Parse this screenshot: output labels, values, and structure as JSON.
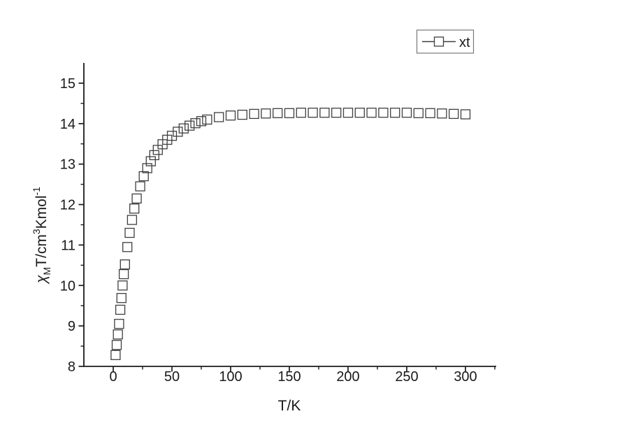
{
  "chart_data": {
    "type": "scatter",
    "title": "",
    "series": [
      {
        "name": "xt",
        "marker": "open-square",
        "x": [
          2,
          3,
          4,
          5,
          6,
          7,
          8,
          9,
          10,
          12,
          14,
          16,
          18,
          20,
          23,
          26,
          29,
          32,
          35,
          38,
          42,
          46,
          50,
          55,
          60,
          65,
          70,
          75,
          80,
          90,
          100,
          110,
          120,
          130,
          140,
          150,
          160,
          170,
          180,
          190,
          200,
          210,
          220,
          230,
          240,
          250,
          260,
          270,
          280,
          290,
          300
        ],
        "y": [
          8.28,
          8.53,
          8.79,
          9.05,
          9.4,
          9.69,
          10.0,
          10.28,
          10.52,
          10.95,
          11.3,
          11.62,
          11.9,
          12.15,
          12.45,
          12.7,
          12.9,
          13.07,
          13.22,
          13.35,
          13.49,
          13.6,
          13.7,
          13.8,
          13.88,
          13.95,
          14.01,
          14.06,
          14.1,
          14.16,
          14.2,
          14.22,
          14.24,
          14.25,
          14.26,
          14.26,
          14.27,
          14.27,
          14.27,
          14.27,
          14.27,
          14.27,
          14.27,
          14.27,
          14.27,
          14.27,
          14.26,
          14.26,
          14.25,
          14.24,
          14.23
        ]
      }
    ],
    "x_axis": {
      "label": "T/K",
      "tick_values": [
        0,
        50,
        100,
        150,
        200,
        250,
        300
      ],
      "minor_tick_values": [
        25,
        75,
        125,
        175,
        225,
        275,
        325
      ]
    },
    "y_axis": {
      "label": "χMT/cm3Kmol-1",
      "label_parts": [
        {
          "text": "χ",
          "shift": "none",
          "italic": true
        },
        {
          "text": "M",
          "shift": "sub"
        },
        {
          "text": "T/cm",
          "shift": "none"
        },
        {
          "text": "3",
          "shift": "sup"
        },
        {
          "text": "Kmol",
          "shift": "none"
        },
        {
          "text": "-1",
          "shift": "sup"
        }
      ],
      "tick_values": [
        8,
        9,
        10,
        11,
        12,
        13,
        14,
        15
      ],
      "minor_tick_values": [
        8.5,
        9.5,
        10.5,
        11.5,
        12.5,
        13.5,
        14.5
      ]
    },
    "xlim": [
      -25,
      325
    ],
    "ylim": [
      8,
      15.5
    ],
    "grid": false,
    "legend": {
      "label": "xt",
      "position": "top-right",
      "marker": "open-square"
    }
  },
  "colors": {
    "background": "#ffffff",
    "axis": "#1a1a1a",
    "text": "#1a1a1a",
    "marker": "#3f3f3f",
    "legend_border": "#777777"
  }
}
